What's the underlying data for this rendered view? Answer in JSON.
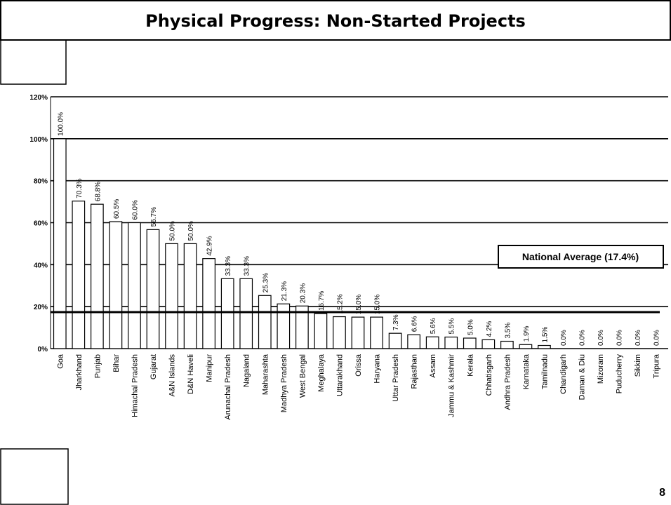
{
  "chart_data": {
    "type": "bar",
    "title": "Physical Progress: Non-Started Projects",
    "categories": [
      "Goa",
      "Jharkhand",
      "Punjab",
      "Bihar",
      "Himachal Pradesh",
      "Gujarat",
      "A&N Islands",
      "D&N Haveli",
      "Manipur",
      "Arunachal Pradesh",
      "Nagaland",
      "Maharashta",
      "Madhya Pradesh",
      "West Bengal",
      "Meghalaya",
      "Uttarakhand",
      "Orissa",
      "Haryana",
      "Uttar Pradesh",
      "Rajasthan",
      "Assam",
      "Jammu & Kashmir",
      "Kerala",
      "Chhatisgarh",
      "Andhra Pradesh",
      "Karnataka",
      "Tamilnadu",
      "Chandigarh",
      "Daman & Diu",
      "Mizoram",
      "Puducherry",
      "Sikkim",
      "Tripura"
    ],
    "values": [
      100.0,
      70.3,
      68.8,
      60.5,
      60.0,
      56.7,
      50.0,
      50.0,
      42.9,
      33.3,
      33.3,
      25.3,
      21.3,
      20.3,
      16.7,
      15.2,
      15.0,
      15.0,
      7.3,
      6.6,
      5.6,
      5.5,
      5.0,
      4.2,
      3.5,
      1.9,
      1.5,
      0,
      0,
      0,
      0,
      0,
      0
    ],
    "value_labels": [
      "100.0%",
      "70.3%",
      "68.8%",
      "60.5%",
      "60.0%",
      "56.7%",
      "50.0%",
      "50.0%",
      "42.9%",
      "33.3%",
      "33.3%",
      "25.3%",
      "21.3%",
      "20.3%",
      "16.7%",
      "15.2%",
      "15.0%",
      "15.0%",
      "7.3%",
      "6.6%",
      "5.6%",
      "5.5%",
      "5.0%",
      "4.2%",
      "3.5%",
      "1.9%",
      "1.5%",
      "0.0%",
      "0.0%",
      "0.0%",
      "0.0%",
      "0.0%",
      "0.0%"
    ],
    "color": "#ffffff",
    "ylim": [
      0,
      120
    ],
    "yticks": [
      {
        "value": 0,
        "label": "0%"
      },
      {
        "value": 20,
        "label": "20%"
      },
      {
        "value": 40,
        "label": "40%"
      },
      {
        "value": 60,
        "label": "60%"
      },
      {
        "value": 80,
        "label": "80%"
      },
      {
        "value": 100,
        "label": "100%"
      },
      {
        "value": 120,
        "label": "120%"
      }
    ],
    "grid": true,
    "national_average": 17.4,
    "annotation": "National Average (17.4%)",
    "page_number": "8"
  }
}
